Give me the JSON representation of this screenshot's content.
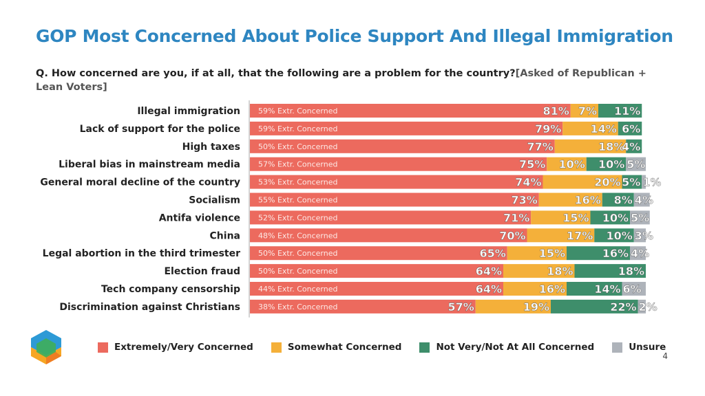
{
  "title": "GOP Most Concerned About Police Support And Illegal Immigration",
  "question": "Q. How concerned are you, if at all, that the following are a problem for the country?",
  "question_note": "[Asked of Republican + Lean Voters]",
  "page_number": "4",
  "colors": {
    "extremely": "#ec6a5e",
    "somewhat": "#f4b03a",
    "not": "#3e8e6b",
    "unsure": "#aeb3ba",
    "title": "#2e86c1"
  },
  "chart_data": {
    "type": "bar",
    "orientation": "horizontal",
    "stacked": true,
    "xlim": [
      0,
      100
    ],
    "legend_position": "bottom",
    "categories": [
      "Illegal immigration",
      "Lack of support for the police",
      "High taxes",
      "Liberal bias in mainstream media",
      "General moral decline of the country",
      "Socialism",
      "Antifa violence",
      "China",
      "Legal abortion in the third trimester",
      "Election fraud",
      "Tech company censorship",
      "Discrimination against Christians"
    ],
    "series": [
      {
        "name": "Extremely/Very Concerned",
        "values": [
          81,
          79,
          77,
          75,
          74,
          73,
          71,
          70,
          65,
          64,
          64,
          57
        ]
      },
      {
        "name": "Somewhat Concerned",
        "values": [
          7,
          14,
          18,
          10,
          20,
          16,
          15,
          17,
          15,
          18,
          16,
          19
        ]
      },
      {
        "name": "Not Very/Not At All Concerned",
        "values": [
          11,
          6,
          4,
          10,
          5,
          8,
          10,
          10,
          16,
          18,
          14,
          22
        ]
      },
      {
        "name": "Unsure",
        "values": [
          0,
          0,
          0,
          5,
          1,
          4,
          5,
          3,
          4,
          0,
          6,
          2
        ]
      }
    ],
    "extremely_concerned": [
      59,
      59,
      50,
      57,
      53,
      55,
      52,
      48,
      50,
      50,
      44,
      38
    ],
    "extremely_label": "Extr. Concerned"
  }
}
